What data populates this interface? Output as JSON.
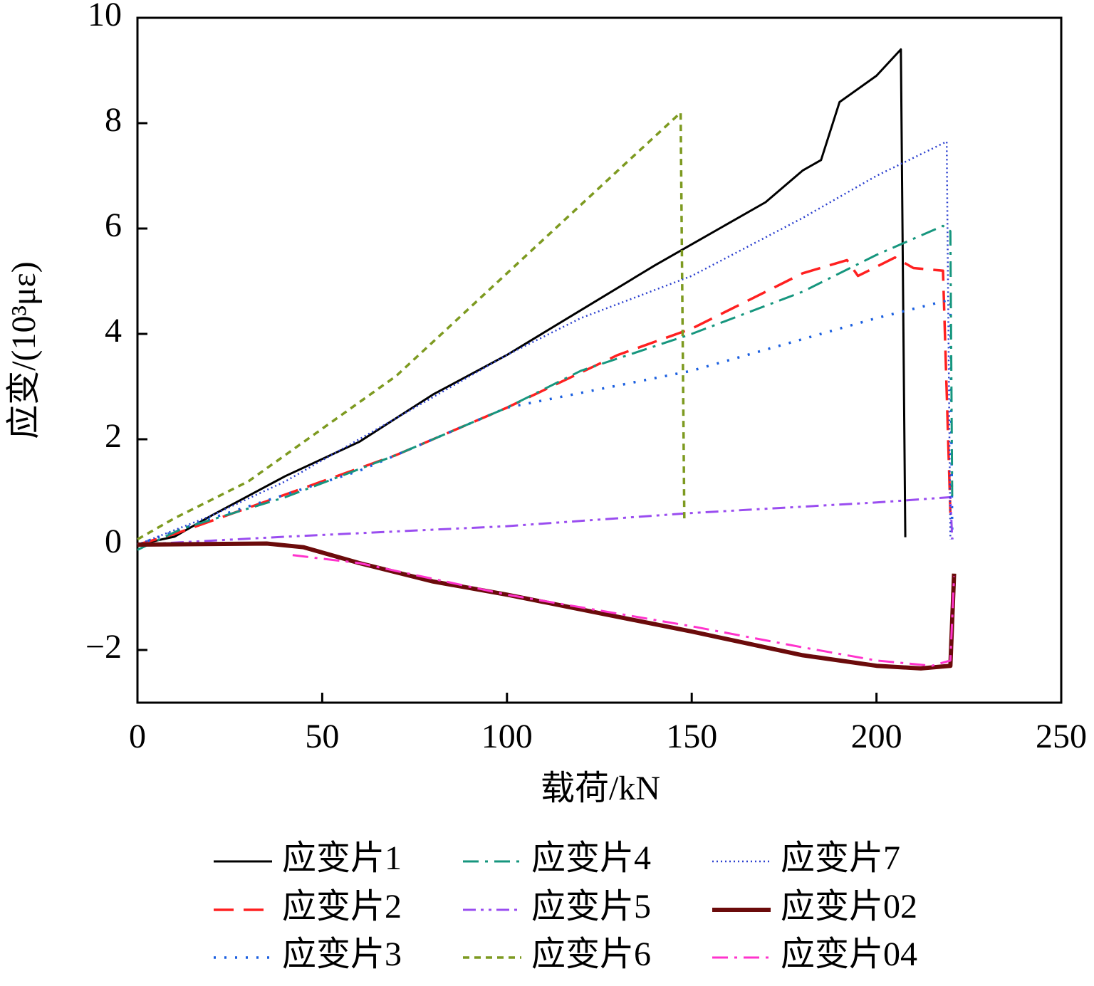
{
  "chart_data": {
    "type": "line",
    "xlabel": "载荷/kN",
    "ylabel": "应变/(10³με)",
    "xlim": [
      0,
      250
    ],
    "xticks": [
      0,
      50,
      100,
      150,
      200,
      250
    ],
    "ylim": [
      -3,
      10
    ],
    "yticks": [
      {
        "value": -2,
        "label": "−2"
      },
      0,
      2,
      4,
      6,
      8,
      10
    ],
    "legend": "bottom",
    "series": [
      {
        "name": "应变片1",
        "color": "#000000",
        "style": "solid",
        "x": [
          0,
          10,
          20,
          40,
          60,
          80,
          100,
          120,
          140,
          150,
          170,
          180,
          185,
          190,
          200,
          206.6,
          207.8
        ],
        "values": [
          0,
          0.15,
          0.55,
          1.3,
          1.95,
          2.85,
          3.6,
          4.45,
          5.3,
          5.7,
          6.5,
          7.1,
          7.3,
          8.4,
          8.9,
          9.4,
          0.14
        ]
      },
      {
        "name": "应变片2",
        "color": "#ff2020",
        "style": "dash",
        "x": [
          0,
          10,
          30,
          50,
          70,
          100,
          130,
          150,
          180,
          192,
          195,
          205,
          210,
          218,
          220
        ],
        "values": [
          0,
          0.2,
          0.7,
          1.2,
          1.7,
          2.6,
          3.6,
          4.1,
          5.15,
          5.4,
          5.1,
          5.45,
          5.25,
          5.2,
          0.6
        ]
      },
      {
        "name": "应变片3",
        "color": "#1a5fe0",
        "style": "dot",
        "x": [
          0,
          20,
          40,
          60,
          80,
          100,
          150,
          180,
          200,
          220,
          220.5
        ],
        "values": [
          0,
          0.5,
          0.95,
          1.4,
          2.0,
          2.6,
          3.3,
          3.9,
          4.3,
          4.65,
          0.1
        ]
      },
      {
        "name": "应变片4",
        "color": "#16967e",
        "style": "dashdot",
        "x": [
          0,
          12,
          40,
          70,
          100,
          120,
          150,
          180,
          200,
          218,
          220,
          220.5
        ],
        "values": [
          -0.1,
          0.3,
          0.9,
          1.7,
          2.6,
          3.3,
          4.0,
          4.8,
          5.5,
          6.05,
          5.95,
          0.8
        ]
      },
      {
        "name": "应变片5",
        "color": "#9a4df0",
        "style": "dashdotdot",
        "x": [
          0,
          40,
          100,
          150,
          200,
          220,
          220.5
        ],
        "values": [
          0,
          0.15,
          0.35,
          0.6,
          0.8,
          0.9,
          0.1
        ]
      },
      {
        "name": "应变片6",
        "color": "#7d9a20",
        "style": "shortdash",
        "x": [
          0,
          10,
          30,
          50,
          70,
          90,
          110,
          130,
          147,
          148
        ],
        "values": [
          0.1,
          0.5,
          1.2,
          2.2,
          3.2,
          4.5,
          5.8,
          7.1,
          8.2,
          0.45
        ]
      },
      {
        "name": "应变片7",
        "color": "#2a3fcf",
        "style": "densedot",
        "x": [
          0,
          20,
          40,
          60,
          80,
          100,
          120,
          150,
          180,
          200,
          219,
          220
        ],
        "values": [
          0,
          0.55,
          1.2,
          2.0,
          2.8,
          3.6,
          4.3,
          5.1,
          6.2,
          7.0,
          7.65,
          0.1
        ]
      },
      {
        "name": "应变片02",
        "color": "#6b0b0b",
        "style": "thick",
        "x": [
          0,
          35,
          45,
          60,
          80,
          100,
          150,
          180,
          200,
          212,
          220,
          221
        ],
        "values": [
          0,
          0.02,
          -0.05,
          -0.35,
          -0.7,
          -0.95,
          -1.65,
          -2.1,
          -2.3,
          -2.35,
          -2.3,
          -0.55
        ]
      },
      {
        "name": "应变片04",
        "color": "#ff33cc",
        "style": "dashdot",
        "x": [
          42,
          60,
          100,
          150,
          180,
          200,
          215,
          220,
          221
        ],
        "values": [
          -0.2,
          -0.35,
          -0.95,
          -1.55,
          -1.95,
          -2.2,
          -2.3,
          -2.2,
          -0.6
        ]
      }
    ]
  }
}
